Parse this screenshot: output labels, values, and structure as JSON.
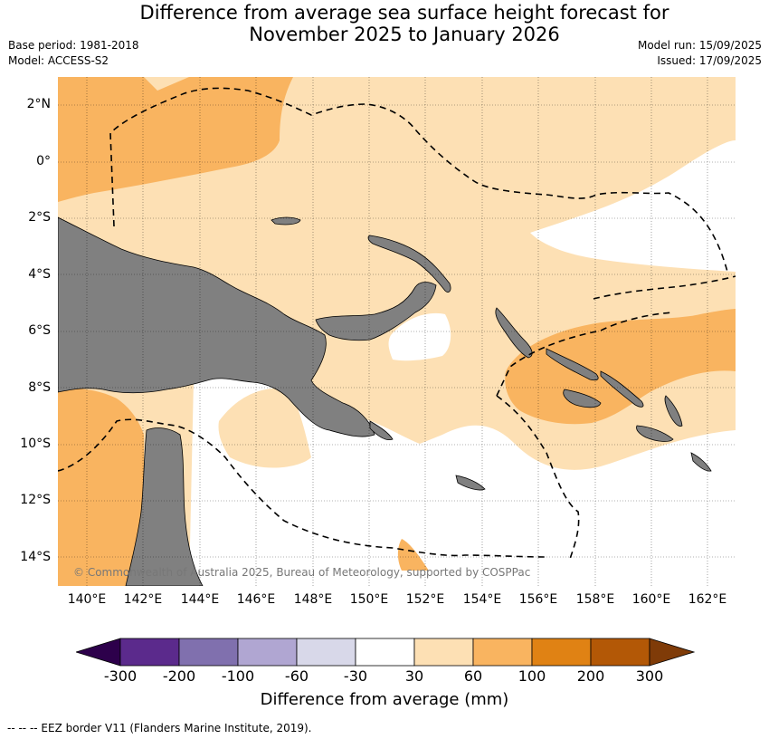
{
  "title_line1": "Difference from average sea surface height forecast for",
  "title_line2": "November 2025 to January 2026",
  "meta_left": [
    "Base period: 1981-2018",
    "Model: ACCESS-S2"
  ],
  "meta_right": [
    "Model run: 15/09/2025",
    "Issued: 17/09/2025"
  ],
  "lat_labels": [
    "2°N",
    "0°",
    "2°S",
    "4°S",
    "6°S",
    "8°S",
    "10°S",
    "12°S",
    "14°S"
  ],
  "lon_labels": [
    "140°E",
    "142°E",
    "144°E",
    "146°E",
    "148°E",
    "150°E",
    "152°E",
    "154°E",
    "156°E",
    "158°E",
    "160°E",
    "162°E"
  ],
  "copyright": "© Commonwealth of Australia 2025, Bureau of Meteorology, supported by COSPPac",
  "colorbar": {
    "ticks": [
      "-300",
      "-200",
      "-100",
      "-60",
      "-30",
      "30",
      "60",
      "100",
      "200",
      "300"
    ],
    "colors": [
      "#5b2a8c",
      "#8070ae",
      "#b0a6d2",
      "#d8d8e9",
      "#ffffff",
      "#fde0b4",
      "#f9b460",
      "#e08214",
      "#b35806"
    ],
    "under_color": "#2d004b",
    "over_color": "#7f3b08",
    "title": "Difference from average (mm)"
  },
  "colors": {
    "land": "#808080",
    "ocean_light": "#fde0b4",
    "ocean_mid": "#f9b460",
    "ocean_none": "#ffffff"
  },
  "legend_note": "--  --  -- EEZ border V11 (Flanders Marine Institute, 2019)."
}
